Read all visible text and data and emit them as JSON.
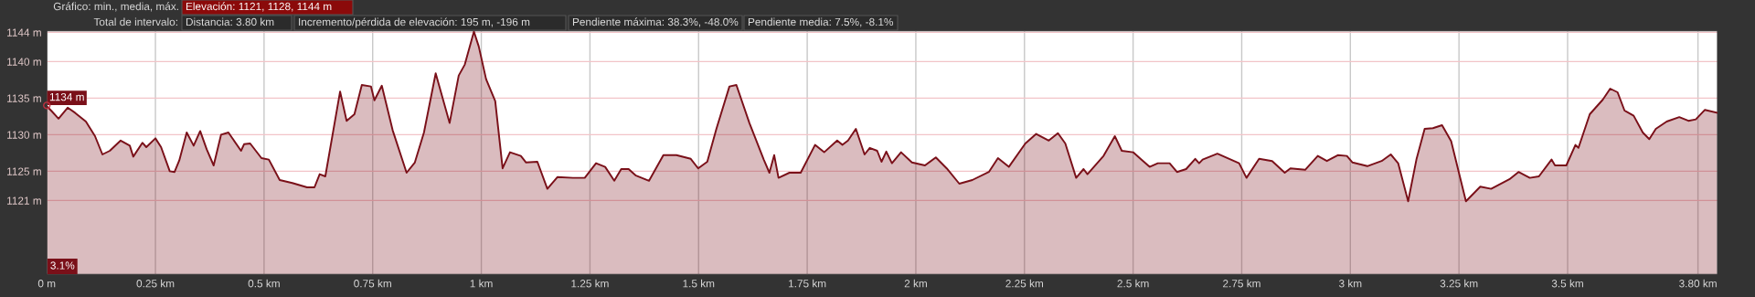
{
  "chart_data": {
    "type": "area",
    "x": [
      0,
      0.01,
      0.027,
      0.048,
      0.065,
      0.09,
      0.111,
      0.128,
      0.145,
      0.17,
      0.191,
      0.199,
      0.22,
      0.229,
      0.25,
      0.263,
      0.283,
      0.294,
      0.305,
      0.322,
      0.338,
      0.353,
      0.368,
      0.384,
      0.401,
      0.418,
      0.447,
      0.454,
      0.468,
      0.494,
      0.511,
      0.536,
      0.565,
      0.599,
      0.616,
      0.628,
      0.641,
      0.675,
      0.69,
      0.708,
      0.725,
      0.746,
      0.754,
      0.771,
      0.796,
      0.828,
      0.847,
      0.868,
      0.895,
      0.927,
      0.948,
      0.962,
      0.983,
      0.994,
      1.011,
      1.032,
      1.049,
      1.066,
      1.091,
      1.103,
      1.129,
      1.152,
      1.175,
      1.211,
      1.238,
      1.264,
      1.285,
      1.306,
      1.322,
      1.339,
      1.356,
      1.386,
      1.419,
      1.449,
      1.482,
      1.499,
      1.52,
      1.541,
      1.571,
      1.587,
      1.617,
      1.65,
      1.663,
      1.674,
      1.684,
      1.709,
      1.735,
      1.768,
      1.789,
      1.819,
      1.831,
      1.844,
      1.862,
      1.882,
      1.894,
      1.911,
      1.921,
      1.932,
      1.945,
      1.966,
      1.991,
      2.021,
      2.046,
      2.071,
      2.1,
      2.13,
      2.168,
      2.189,
      2.214,
      2.252,
      2.277,
      2.306,
      2.327,
      2.344,
      2.369,
      2.386,
      2.395,
      2.432,
      2.458,
      2.474,
      2.5,
      2.517,
      2.538,
      2.557,
      2.584,
      2.601,
      2.622,
      2.643,
      2.652,
      2.66,
      2.694,
      2.744,
      2.761,
      2.79,
      2.82,
      2.849,
      2.862,
      2.896,
      2.925,
      2.946,
      2.971,
      2.992,
      3.005,
      3.039,
      3.072,
      3.093,
      3.11,
      3.133,
      3.152,
      3.171,
      3.19,
      3.211,
      3.232,
      3.266,
      3.299,
      3.324,
      3.366,
      3.387,
      3.413,
      3.434,
      3.463,
      3.471,
      3.497,
      3.518,
      3.525,
      3.551,
      3.581,
      3.598,
      3.615,
      3.631,
      3.652,
      3.673,
      3.688,
      3.703,
      3.728,
      3.757,
      3.778,
      3.795,
      3.816,
      3.844
    ],
    "series": [
      {
        "color": "#7a1019",
        "values": [
          1133.9,
          1133.3,
          1132.2,
          1133.7,
          1133,
          1131.8,
          1129.8,
          1127.3,
          1127.8,
          1129.2,
          1128.5,
          1127,
          1128.9,
          1128.3,
          1129.5,
          1128.3,
          1125,
          1124.9,
          1126.5,
          1130.3,
          1128.5,
          1130.5,
          1128,
          1125.8,
          1130,
          1130.3,
          1127.8,
          1128.7,
          1128.8,
          1126.8,
          1126.6,
          1123.8,
          1123.4,
          1122.8,
          1122.8,
          1124.6,
          1124.3,
          1135.9,
          1131.9,
          1132.8,
          1136.8,
          1136.6,
          1134.7,
          1136.7,
          1130.6,
          1124.8,
          1126.2,
          1130.3,
          1138.4,
          1131.6,
          1138.1,
          1139.6,
          1144.1,
          1142.1,
          1137.6,
          1134.6,
          1125.4,
          1127.6,
          1127.1,
          1126.2,
          1126.3,
          1122.6,
          1124.2,
          1124.1,
          1124.1,
          1126.1,
          1125.6,
          1123.7,
          1125.3,
          1125.3,
          1124.4,
          1123.7,
          1127.2,
          1127.2,
          1126.7,
          1125.4,
          1126.3,
          1130.8,
          1136.6,
          1136.8,
          1131.6,
          1126.6,
          1124.8,
          1127.2,
          1124.1,
          1124.8,
          1124.8,
          1128.6,
          1127.6,
          1129.2,
          1128.6,
          1129.2,
          1130.8,
          1127.3,
          1128.2,
          1127.8,
          1126.3,
          1127.7,
          1126.1,
          1127.6,
          1126.2,
          1125.8,
          1126.9,
          1125.4,
          1123.3,
          1123.8,
          1124.9,
          1126.8,
          1125.6,
          1128.8,
          1130.1,
          1129.2,
          1130.2,
          1128.8,
          1124.1,
          1125.3,
          1124.6,
          1127.1,
          1129.8,
          1127.8,
          1127.6,
          1126.7,
          1125.6,
          1126.1,
          1126.1,
          1124.9,
          1125.3,
          1126.7,
          1126.1,
          1126.6,
          1127.4,
          1126.1,
          1124.1,
          1126.7,
          1126.4,
          1124.8,
          1125.4,
          1125.2,
          1127.1,
          1126.4,
          1127.2,
          1127.1,
          1126.2,
          1125.7,
          1126.4,
          1127.3,
          1126.1,
          1120.9,
          1126.6,
          1130.8,
          1130.9,
          1131.3,
          1129.1,
          1120.9,
          1122.9,
          1122.6,
          1123.9,
          1124.9,
          1124.1,
          1124.3,
          1126.6,
          1125.8,
          1125.8,
          1128.6,
          1128.2,
          1132.8,
          1134.8,
          1136.3,
          1135.8,
          1133.3,
          1132.6,
          1130.3,
          1129.4,
          1130.8,
          1131.8,
          1132.4,
          1131.9,
          1132.1,
          1133.4,
          1133
        ]
      }
    ],
    "xlim": [
      0,
      3.845
    ],
    "ylim": [
      1110.9,
      1144.2
    ],
    "xticks": [
      {
        "value": 0,
        "label": "0 m"
      },
      {
        "value": 0.25,
        "label": "0.25 km"
      },
      {
        "value": 0.5,
        "label": "0.5 km"
      },
      {
        "value": 0.75,
        "label": "0.75 km"
      },
      {
        "value": 1,
        "label": "1 km"
      },
      {
        "value": 1.25,
        "label": "1.25 km"
      },
      {
        "value": 1.5,
        "label": "1.5 km"
      },
      {
        "value": 1.75,
        "label": "1.75 km"
      },
      {
        "value": 2,
        "label": "2 km"
      },
      {
        "value": 2.25,
        "label": "2.25 km"
      },
      {
        "value": 2.5,
        "label": "2.5 km"
      },
      {
        "value": 2.75,
        "label": "2.75 km"
      },
      {
        "value": 3,
        "label": "3 km"
      },
      {
        "value": 3.25,
        "label": "3.25 km"
      },
      {
        "value": 3.5,
        "label": "3.5 km"
      },
      {
        "value": 3.8,
        "label": "3.80 km"
      }
    ],
    "yticks": [
      {
        "value": 1121,
        "label": "1121 m"
      },
      {
        "value": 1125,
        "label": "1125 m"
      },
      {
        "value": 1130,
        "label": "1130 m"
      },
      {
        "value": 1135,
        "label": "1135 m"
      },
      {
        "value": 1140,
        "label": "1140 m"
      },
      {
        "value": 1144,
        "label": "1144 m"
      }
    ],
    "grid": true,
    "annotations": [
      "Gráfico: min., media, máx.",
      "Elevación: 1121, 1128, 1144 m",
      "Total de intervalo:",
      "Distancia: 3.80 km",
      "Incremento/pérdida de elevación: 195 m, -196 m",
      "Pendiente máxima: 38.3%, -48.0%",
      "Pendiente media: 7.5%, -8.1%",
      {
        "text": "1134 m",
        "x": 0,
        "y": 1134
      },
      "3.1%"
    ]
  }
}
